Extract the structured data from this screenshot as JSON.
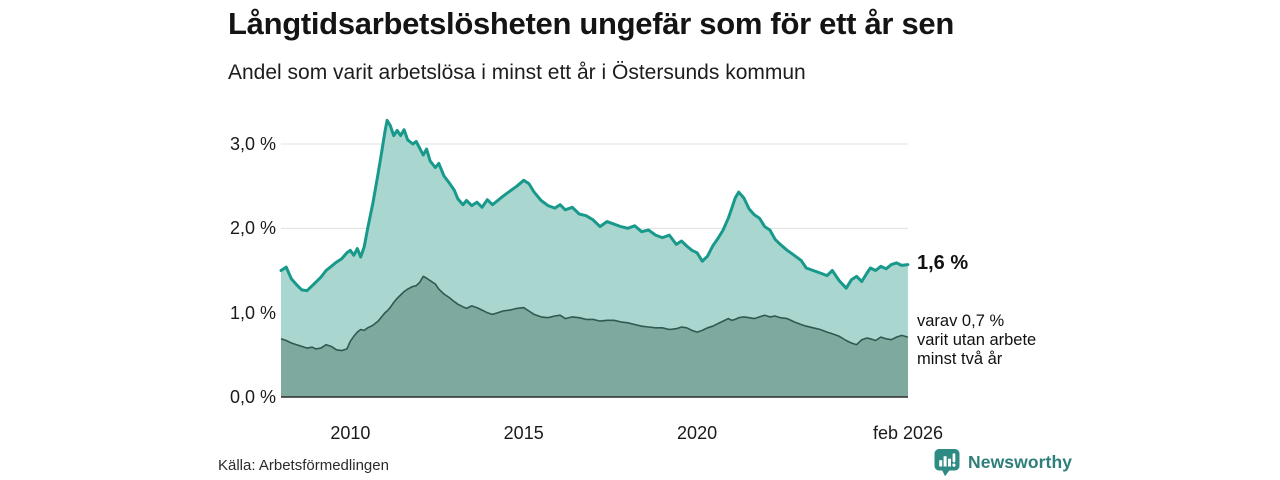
{
  "header": {
    "title": "Långtidsarbetslösheten ungefär som för ett år sen",
    "subtitle": "Andel som varit arbetslösa i minst ett år i Östersunds kommun"
  },
  "annotations": {
    "latest_total": "1,6 %",
    "two_year_note_lines": [
      "varav 0,7 %",
      "varit utan arbete",
      "minst två år"
    ]
  },
  "source": {
    "label": "Källa: Arbetsförmedlingen"
  },
  "brand": {
    "name": "Newsworthy",
    "color": "#2e8b84",
    "icon": "bar-chart-speech-bubble-icon"
  },
  "colors": {
    "total_line": "#18998b",
    "total_fill": "#a9d6ce",
    "two_year_line": "#2e5a52",
    "two_year_fill": "#7ea99f",
    "grid": "#e0e0e0",
    "axis": "#2d2d2d",
    "text": "#1a1a1a"
  },
  "chart_data": {
    "type": "area",
    "title": "Långtidsarbetslösheten ungefär som för ett år sen",
    "subtitle": "Andel som varit arbetslösa i minst ett år i Östersunds kommun",
    "unit": "%",
    "grid": true,
    "legend_position": "none",
    "xlim": [
      2008.0,
      2026.083
    ],
    "ylim": [
      0,
      3.5
    ],
    "y_ticks": [
      "0,0 %",
      "1,0 %",
      "2,0 %",
      "3,0 %"
    ],
    "y_tick_values": [
      0,
      1,
      2,
      3
    ],
    "x_ticks": [
      "2010",
      "2015",
      "2020",
      "feb 2026"
    ],
    "x_tick_years": [
      2010,
      2015,
      2020,
      2026.083
    ],
    "x": [
      2008.0,
      2008.15,
      2008.3,
      2008.45,
      2008.6,
      2008.75,
      2008.9,
      2009.0,
      2009.15,
      2009.3,
      2009.45,
      2009.6,
      2009.75,
      2009.9,
      2010.0,
      2010.1,
      2010.2,
      2010.3,
      2010.4,
      2010.5,
      2010.65,
      2010.8,
      2010.9,
      2011.0,
      2011.06,
      2011.15,
      2011.25,
      2011.35,
      2011.45,
      2011.55,
      2011.65,
      2011.8,
      2011.9,
      2012.0,
      2012.1,
      2012.2,
      2012.3,
      2012.45,
      2012.55,
      2012.7,
      2012.85,
      2013.0,
      2013.1,
      2013.25,
      2013.35,
      2013.5,
      2013.65,
      2013.8,
      2013.95,
      2014.1,
      2014.25,
      2014.4,
      2014.6,
      2014.8,
      2015.0,
      2015.15,
      2015.3,
      2015.5,
      2015.7,
      2015.9,
      2016.05,
      2016.2,
      2016.4,
      2016.6,
      2016.8,
      2017.0,
      2017.2,
      2017.4,
      2017.6,
      2017.8,
      2018.0,
      2018.2,
      2018.4,
      2018.6,
      2018.8,
      2019.0,
      2019.2,
      2019.4,
      2019.55,
      2019.7,
      2019.85,
      2020.0,
      2020.15,
      2020.3,
      2020.45,
      2020.6,
      2020.75,
      2020.9,
      2021.0,
      2021.1,
      2021.2,
      2021.35,
      2021.5,
      2021.65,
      2021.8,
      2021.95,
      2022.1,
      2022.25,
      2022.4,
      2022.6,
      2022.8,
      2023.0,
      2023.15,
      2023.35,
      2023.55,
      2023.75,
      2023.9,
      2024.1,
      2024.3,
      2024.45,
      2024.6,
      2024.75,
      2024.9,
      2025.0,
      2025.15,
      2025.3,
      2025.45,
      2025.6,
      2025.75,
      2025.9,
      2026.08
    ],
    "series": [
      {
        "name": "Andel arbetslösa minst ett år",
        "end_label": "1,6 %",
        "values": [
          1.5,
          1.54,
          1.4,
          1.33,
          1.27,
          1.26,
          1.32,
          1.36,
          1.42,
          1.5,
          1.55,
          1.6,
          1.64,
          1.71,
          1.74,
          1.68,
          1.76,
          1.66,
          1.78,
          2.0,
          2.3,
          2.65,
          2.9,
          3.15,
          3.28,
          3.22,
          3.1,
          3.16,
          3.1,
          3.17,
          3.05,
          3.0,
          3.03,
          2.95,
          2.87,
          2.94,
          2.8,
          2.72,
          2.77,
          2.62,
          2.54,
          2.45,
          2.35,
          2.28,
          2.33,
          2.27,
          2.31,
          2.25,
          2.34,
          2.28,
          2.33,
          2.38,
          2.44,
          2.5,
          2.57,
          2.53,
          2.43,
          2.33,
          2.27,
          2.24,
          2.28,
          2.22,
          2.25,
          2.17,
          2.15,
          2.1,
          2.02,
          2.08,
          2.05,
          2.02,
          2.0,
          2.03,
          1.96,
          1.98,
          1.92,
          1.89,
          1.92,
          1.81,
          1.85,
          1.79,
          1.74,
          1.71,
          1.61,
          1.67,
          1.79,
          1.88,
          1.98,
          2.12,
          2.24,
          2.36,
          2.43,
          2.36,
          2.23,
          2.16,
          2.12,
          2.02,
          1.98,
          1.87,
          1.81,
          1.74,
          1.68,
          1.62,
          1.53,
          1.5,
          1.47,
          1.44,
          1.5,
          1.38,
          1.29,
          1.39,
          1.43,
          1.37,
          1.47,
          1.53,
          1.5,
          1.55,
          1.52,
          1.57,
          1.59,
          1.56,
          1.57
        ]
      },
      {
        "name": "varav utan arbete minst två år",
        "end_label": "0,7 %",
        "values": [
          0.69,
          0.67,
          0.64,
          0.62,
          0.6,
          0.58,
          0.59,
          0.57,
          0.58,
          0.62,
          0.6,
          0.56,
          0.55,
          0.57,
          0.66,
          0.72,
          0.77,
          0.8,
          0.79,
          0.82,
          0.85,
          0.9,
          0.95,
          1.0,
          1.02,
          1.06,
          1.12,
          1.17,
          1.21,
          1.25,
          1.28,
          1.31,
          1.32,
          1.36,
          1.43,
          1.41,
          1.38,
          1.34,
          1.28,
          1.22,
          1.18,
          1.13,
          1.1,
          1.07,
          1.05,
          1.08,
          1.06,
          1.03,
          1.0,
          0.98,
          1.0,
          1.02,
          1.03,
          1.05,
          1.06,
          1.02,
          0.98,
          0.95,
          0.94,
          0.96,
          0.97,
          0.93,
          0.95,
          0.94,
          0.92,
          0.92,
          0.9,
          0.91,
          0.91,
          0.89,
          0.88,
          0.86,
          0.84,
          0.83,
          0.82,
          0.82,
          0.8,
          0.81,
          0.83,
          0.82,
          0.79,
          0.77,
          0.79,
          0.82,
          0.84,
          0.87,
          0.9,
          0.93,
          0.91,
          0.92,
          0.94,
          0.95,
          0.94,
          0.93,
          0.95,
          0.97,
          0.95,
          0.96,
          0.94,
          0.93,
          0.89,
          0.86,
          0.84,
          0.82,
          0.8,
          0.77,
          0.75,
          0.72,
          0.67,
          0.64,
          0.62,
          0.68,
          0.7,
          0.69,
          0.67,
          0.71,
          0.69,
          0.68,
          0.71,
          0.73,
          0.71
        ]
      }
    ]
  }
}
